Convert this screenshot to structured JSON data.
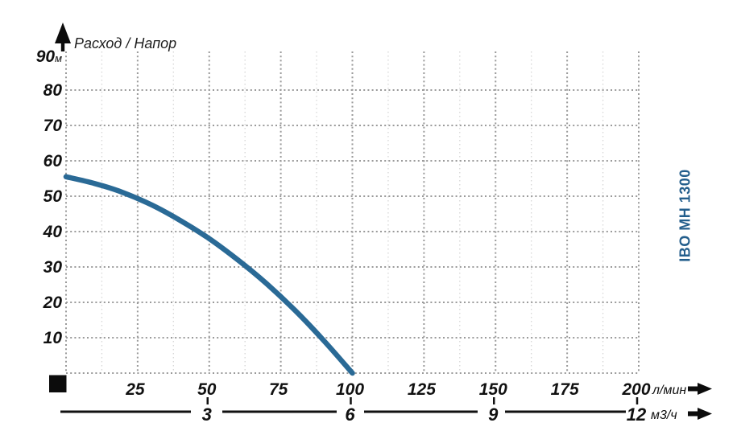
{
  "chart_data": {
    "type": "line",
    "title": "Расход / Напор",
    "series": [
      {
        "name": "IBO MH 1300",
        "x": [
          0,
          10,
          20,
          30,
          40,
          50,
          60,
          70,
          80,
          90,
          100
        ],
        "y": [
          55.5,
          53.6,
          51.0,
          47.5,
          43.1,
          38.0,
          32.0,
          25.3,
          17.7,
          9.2,
          0.0
        ]
      }
    ],
    "x_axis": {
      "unit_primary": "л/мин",
      "ticks_primary": [
        25,
        50,
        75,
        100,
        125,
        150,
        175,
        200
      ],
      "unit_secondary": "м3/ч",
      "ticks_secondary": [
        3,
        6,
        9,
        12
      ],
      "range": [
        0,
        200
      ],
      "major_step": 25,
      "minor_step": 12.5,
      "secondary_to_primary_factor": 16.6667
    },
    "y_axis": {
      "unit": "м",
      "ticks": [
        10,
        20,
        30,
        40,
        50,
        60,
        70,
        80,
        90
      ],
      "range": [
        0,
        90
      ],
      "step": 10
    },
    "grid": "dotted",
    "legend_position": "right-vertical"
  },
  "icons": {
    "y_axis_arrow": "up-arrow",
    "x_axis_arrow_primary": "right-arrow",
    "x_axis_arrow_secondary": "right-arrow",
    "origin_marker": "black-square"
  },
  "colors": {
    "curve": "#2a6a96",
    "series_label": "#235e8c",
    "grid_major": "#9a9a9a",
    "grid_minor": "#d6d6d6",
    "axis_text": "#111111",
    "title_text": "#1f1f1f",
    "background": "#ffffff"
  }
}
